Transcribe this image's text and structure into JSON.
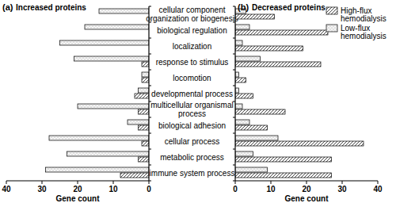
{
  "chart_data": [
    {
      "type": "bar",
      "orientation": "horizontal",
      "title": "Increased proteins",
      "annotations": [
        "(a)"
      ],
      "categories": [
        "cellular component organization or biogenesis",
        "biological regulation",
        "localization",
        "response to stimulus",
        "locomotion",
        "developmental process",
        "multicellular organismal process",
        "biological adhesion",
        "cellular process",
        "metabolic process",
        "immune system process"
      ],
      "series": [
        {
          "name": "High-flux hemodialysis",
          "color": "#333333",
          "values": [
            0,
            0,
            0,
            2,
            2,
            4,
            3,
            3,
            2,
            3,
            8
          ]
        },
        {
          "name": "Low-flux hemodialysis",
          "color": "#9a9a9a",
          "values": [
            14,
            18,
            25,
            21,
            2,
            3,
            20,
            6,
            28,
            23,
            29
          ]
        }
      ],
      "x_label": "Gene count",
      "xlim": [
        40,
        0
      ],
      "xticks": [
        40,
        30,
        20,
        10,
        0
      ]
    },
    {
      "type": "bar",
      "orientation": "horizontal",
      "title": "Decreased proteins",
      "annotations": [
        "(b)"
      ],
      "categories": [
        "cellular component organization or biogenesis",
        "biological regulation",
        "localization",
        "response to stimulus",
        "locomotion",
        "developmental process",
        "multicellular organismal process",
        "biological adhesion",
        "cellular process",
        "metabolic process",
        "immune system process"
      ],
      "series": [
        {
          "name": "High-flux hemodialysis",
          "color": "#333333",
          "values": [
            11,
            26,
            19,
            24,
            3,
            5,
            14,
            9,
            36,
            27,
            27
          ]
        },
        {
          "name": "Low-flux hemodialysis",
          "color": "#9a9a9a",
          "values": [
            3,
            4,
            2,
            7,
            1,
            1,
            2,
            4,
            12,
            5,
            9
          ]
        }
      ],
      "x_label": "Gene count",
      "xlim": [
        0,
        40
      ],
      "xticks": [
        0,
        10,
        20,
        30,
        40
      ],
      "legend": "top-right"
    }
  ]
}
